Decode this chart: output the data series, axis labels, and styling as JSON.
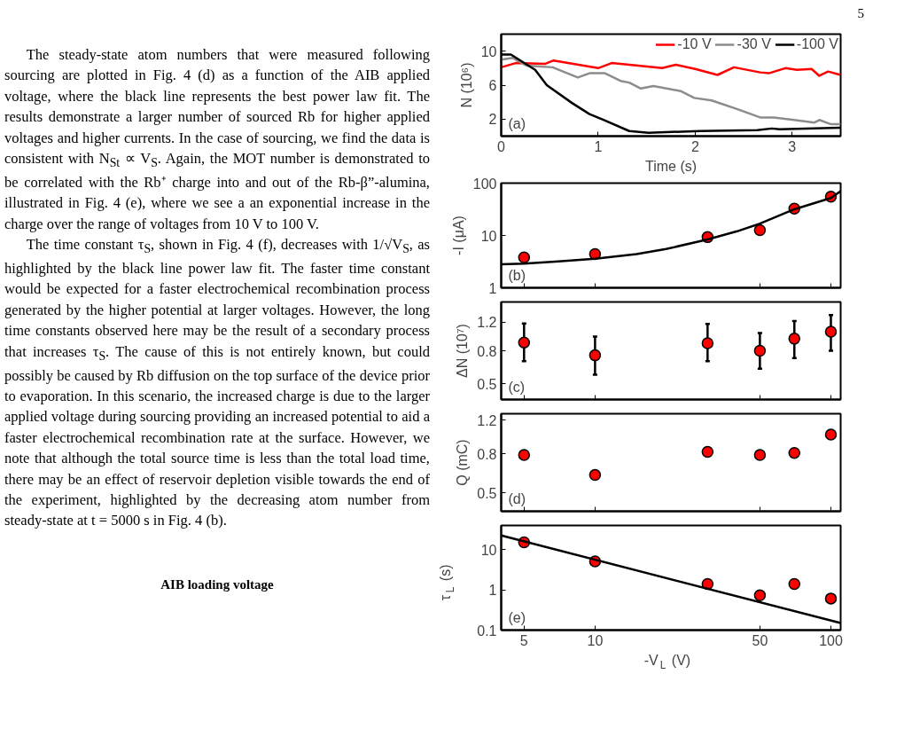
{
  "chart_data": [
    {
      "type": "other",
      "annotations": [
        "5",
        "The steady-state atom numbers that were measured following sourcing are plotted in Fig. 4 (d) as a function of the AIB applied voltage, where the black line represents the best power law fit. The results demonstrate a larger number of sourced Rb for higher applied voltages and higher currents. In the case of sourcing, we find the data is consistent with N$_{St}$ ∝ V$_{S}$. Again, the MOT number is demonstrated to be correlated with the Rb⁺ charge into and out of the Rb-β”-alumina, illustrated in Fig. 4 (e), where we see a an exponential increase in the charge over the range of voltages from 10 V to 100 V.",
        "The time constant τ$_{S}$, shown in Fig. 4 (f), decreases with 1/√V$_{S}$, as highlighted by the black line power law fit. The faster time constant would be expected for a faster electrochemical recombination process generated by the higher potential at larger voltages. However, the long time constants observed here may be the result of a secondary process that increases τ$_{S}$. The cause of this is not entirely known, but could possibly be caused by Rb diffusion on the top surface of the device prior to evaporation. In this scenario, the increased charge is due to the larger applied voltage during sourcing providing an increased potential to aid a faster electrochemical recombination rate at the surface. However, we note that although the total source time is less than the total load time, there may be an effect of reservoir depletion visible towards the end of the experiment, highlighted by the decreasing atom number from steady-state at t = 5000 s in Fig. 4 (b).",
        "AIB loading voltage"
      ]
    },
    {
      "type": "line",
      "xlabel": "Time (s)",
      "ylabel": "N (10⁶)",
      "xlim": [
        0,
        3.5
      ],
      "ylim": [
        0,
        12
      ],
      "xticks": [
        0,
        1,
        2,
        3
      ],
      "yticks": [
        2,
        6,
        10
      ],
      "legend": "top right",
      "annotations": [
        "(a)"
      ],
      "series": [
        {
          "name": "-10 V",
          "color": "#ff0000",
          "x": [
            0,
            0.15,
            0.45,
            0.54,
            1.0,
            1.14,
            1.66,
            1.8,
            2.0,
            2.23,
            2.4,
            2.67,
            2.76,
            2.93,
            3.05,
            3.2,
            3.28,
            3.37,
            3.5
          ],
          "values": [
            8.1,
            8.6,
            8.5,
            8.9,
            8.0,
            8.6,
            8.0,
            8.4,
            7.9,
            7.2,
            8.1,
            7.5,
            7.4,
            8.0,
            7.8,
            7.9,
            7.1,
            7.6,
            7.2
          ]
        },
        {
          "name": "-30 V",
          "color": "#8c8c8c",
          "x": [
            0,
            0.12,
            0.26,
            0.53,
            0.79,
            0.91,
            1.07,
            1.23,
            1.32,
            1.44,
            1.57,
            1.85,
            1.99,
            2.17,
            2.43,
            2.67,
            2.81,
            3.02,
            3.23,
            3.28,
            3.4,
            3.5
          ],
          "values": [
            9.0,
            9.2,
            8.3,
            8.1,
            6.9,
            7.4,
            7.4,
            6.5,
            6.3,
            5.6,
            5.9,
            5.3,
            4.5,
            4.2,
            3.2,
            2.2,
            2.2,
            1.9,
            1.6,
            1.9,
            1.4,
            1.4
          ]
        },
        {
          "name": "-100 V",
          "color": "#000000",
          "x": [
            0,
            0.1,
            0.35,
            0.47,
            0.73,
            0.91,
            1.06,
            1.32,
            1.52,
            2.05,
            2.64,
            2.79,
            2.87,
            3.5
          ],
          "values": [
            9.6,
            9.6,
            7.8,
            6.0,
            3.9,
            2.6,
            1.9,
            0.6,
            0.4,
            0.6,
            0.7,
            0.9,
            0.8,
            1.0
          ]
        }
      ]
    },
    {
      "type": "scatter",
      "ylabel": "-I (μA)",
      "log": "xy",
      "xlim": [
        4,
        110
      ],
      "ylim": [
        1,
        100
      ],
      "xticks": [
        5,
        10,
        50,
        100
      ],
      "yticks": [
        1,
        10,
        100
      ],
      "tick_labels": "y",
      "marker": "circle",
      "annotations": [
        "(b)"
      ],
      "series": [
        {
          "color": "#ff0000",
          "x": [
            5,
            10,
            30,
            50,
            70,
            100
          ],
          "values": [
            3.8,
            4.4,
            9.3,
            12.6,
            32.6,
            55
          ]
        },
        {
          "type": "line",
          "marker": "none",
          "color": "#000000",
          "x": [
            4,
            5,
            7,
            10,
            15,
            20,
            30,
            40,
            50,
            70,
            100,
            110
          ],
          "values": [
            2.8,
            2.9,
            3.2,
            3.6,
            4.4,
            5.5,
            8.4,
            12,
            16.8,
            31.7,
            52,
            70
          ]
        }
      ]
    },
    {
      "type": "scatter",
      "ylabel": "ΔN (10⁷)",
      "log": "xy",
      "xlim": [
        4,
        110
      ],
      "ylim": [
        0.4,
        1.6
      ],
      "xticks": [
        5,
        10,
        50,
        100
      ],
      "yticks": [
        0.5,
        0.8,
        1.2
      ],
      "tick_labels": "y",
      "marker": "circle",
      "annotations": [
        "(c)"
      ],
      "series": [
        {
          "color": "#ff0000",
          "x": [
            5,
            10,
            30,
            50,
            70,
            100
          ],
          "values": [
            0.9,
            0.75,
            0.89,
            0.8,
            0.95,
            1.05
          ],
          "errors": [
            [
              0.69,
              1.18
            ],
            [
              0.57,
              0.98
            ],
            [
              0.69,
              1.17
            ],
            [
              0.62,
              1.03
            ],
            [
              0.72,
              1.22
            ],
            [
              0.8,
              1.33
            ]
          ]
        }
      ]
    },
    {
      "type": "scatter",
      "ylabel": "Q (mC)",
      "log": "xy",
      "xlim": [
        4,
        110
      ],
      "ylim": [
        0.4,
        1.3
      ],
      "xticks": [
        5,
        10,
        50,
        100
      ],
      "yticks": [
        0.5,
        0.8,
        1.2
      ],
      "tick_labels": "y",
      "marker": "circle",
      "annotations": [
        "(d)"
      ],
      "series": [
        {
          "color": "#ff0000",
          "x": [
            5,
            10,
            30,
            50,
            70,
            100
          ],
          "values": [
            0.79,
            0.62,
            0.82,
            0.79,
            0.81,
            1.01
          ]
        }
      ]
    },
    {
      "type": "scatter",
      "xlabel": "-V$_{L}$ (V)",
      "ylabel": "τ$_{L}$ (s)",
      "log": "xy",
      "xlim": [
        4,
        110
      ],
      "ylim": [
        0.1,
        40
      ],
      "xticks": [
        5,
        10,
        50,
        100
      ],
      "yticks": [
        0.1,
        1,
        10
      ],
      "marker": "circle",
      "annotations": [
        "(e)"
      ],
      "series": [
        {
          "color": "#ff0000",
          "x": [
            5,
            10,
            30,
            50,
            70,
            100
          ],
          "values": [
            15.2,
            5.1,
            1.4,
            0.73,
            1.4,
            0.61
          ]
        },
        {
          "type": "line",
          "marker": "none",
          "color": "#000000",
          "x": [
            4,
            110
          ],
          "values": [
            22.6,
            0.15
          ]
        }
      ]
    }
  ]
}
